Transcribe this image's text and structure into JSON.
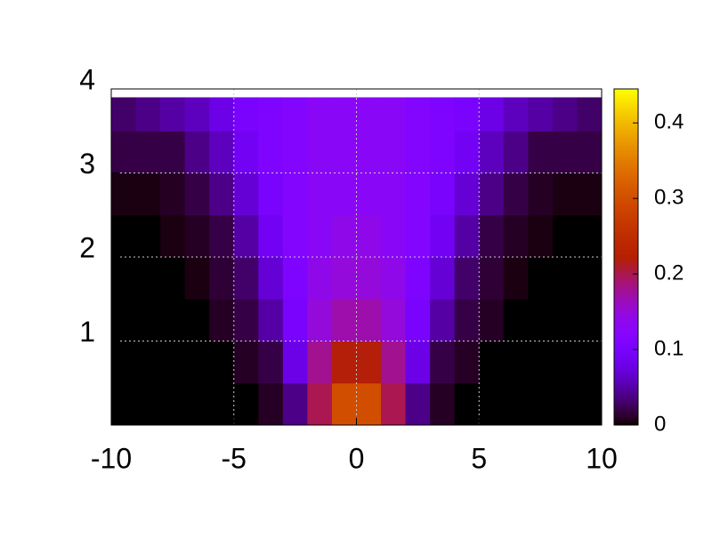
{
  "chart_data": {
    "type": "heatmap",
    "xbins": [
      -10,
      -9,
      -8,
      -7,
      -6,
      -5,
      -4,
      -3,
      -2,
      -1,
      0,
      1,
      2,
      3,
      4,
      5,
      6,
      7,
      8,
      9,
      10
    ],
    "ybins": [
      0,
      0.5,
      1,
      1.5,
      2,
      2.5,
      3,
      3.5,
      3.9
    ],
    "z": [
      [
        0,
        0,
        0,
        0,
        0,
        0,
        0.01,
        0.04,
        0.2,
        0.3,
        0.3,
        0.2,
        0.04,
        0.01,
        0,
        0,
        0,
        0,
        0,
        0
      ],
      [
        0,
        0,
        0,
        0,
        0,
        0.01,
        0.02,
        0.08,
        0.18,
        0.22,
        0.22,
        0.18,
        0.08,
        0.02,
        0.01,
        0,
        0,
        0,
        0,
        0
      ],
      [
        0,
        0,
        0,
        0,
        0.01,
        0.02,
        0.05,
        0.1,
        0.15,
        0.17,
        0.17,
        0.15,
        0.1,
        0.05,
        0.02,
        0.01,
        0,
        0,
        0,
        0
      ],
      [
        0,
        0,
        0,
        0.005,
        0.015,
        0.03,
        0.07,
        0.11,
        0.14,
        0.15,
        0.15,
        0.14,
        0.11,
        0.07,
        0.03,
        0.015,
        0.005,
        0,
        0,
        0
      ],
      [
        0,
        0,
        0.005,
        0.01,
        0.02,
        0.05,
        0.09,
        0.12,
        0.13,
        0.14,
        0.14,
        0.13,
        0.12,
        0.09,
        0.05,
        0.02,
        0.01,
        0.005,
        0,
        0
      ],
      [
        0.005,
        0.005,
        0.01,
        0.02,
        0.04,
        0.07,
        0.1,
        0.12,
        0.13,
        0.13,
        0.13,
        0.13,
        0.12,
        0.1,
        0.07,
        0.04,
        0.02,
        0.01,
        0.005,
        0.005
      ],
      [
        0.02,
        0.02,
        0.02,
        0.04,
        0.06,
        0.09,
        0.11,
        0.12,
        0.13,
        0.13,
        0.13,
        0.13,
        0.12,
        0.11,
        0.09,
        0.06,
        0.04,
        0.02,
        0.02,
        0.02
      ],
      [
        0.03,
        0.04,
        0.05,
        0.06,
        0.08,
        0.1,
        0.11,
        0.12,
        0.13,
        0.13,
        0.13,
        0.13,
        0.12,
        0.11,
        0.1,
        0.08,
        0.06,
        0.05,
        0.04,
        0.03
      ]
    ],
    "xlim": [
      -10,
      10
    ],
    "ylim": [
      0,
      4
    ],
    "xticks": [
      -10,
      -5,
      0,
      5,
      10
    ],
    "yticks": [
      1,
      2,
      3,
      4
    ],
    "cblim": [
      0,
      0.445
    ],
    "cbticks": [
      0,
      0.1,
      0.2,
      0.3,
      0.4
    ],
    "grid": true
  }
}
